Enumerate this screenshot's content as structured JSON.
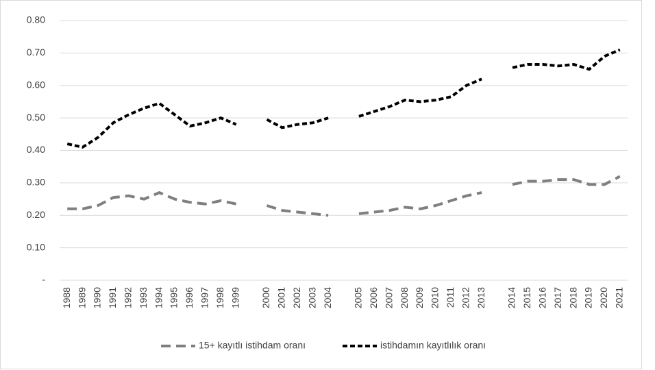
{
  "chart_data": {
    "type": "line",
    "categories": [
      "1988",
      "1989",
      "1990",
      "1991",
      "1992",
      "1993",
      "1994",
      "1995",
      "1996",
      "1997",
      "1998",
      "1999",
      null,
      "2000",
      "2001",
      "2002",
      "2003",
      "2004",
      null,
      "2005",
      "2006",
      "2007",
      "2008",
      "2009",
      "2010",
      "2011",
      "2012",
      "2013",
      null,
      "2014",
      "2015",
      "2016",
      "2017",
      "2018",
      "2019",
      "2020",
      "2021"
    ],
    "series": [
      {
        "name": "15+ kayıtlı istihdam oranı",
        "color": "#7f7f7f",
        "values": [
          0.22,
          0.22,
          0.23,
          0.255,
          0.26,
          0.25,
          0.27,
          0.25,
          0.24,
          0.235,
          0.245,
          0.235,
          null,
          0.23,
          0.215,
          0.21,
          0.205,
          0.2,
          null,
          0.205,
          0.21,
          0.215,
          0.225,
          0.22,
          0.23,
          0.245,
          0.26,
          0.27,
          null,
          0.295,
          0.305,
          0.305,
          0.31,
          0.31,
          0.295,
          0.295,
          0.32
        ]
      },
      {
        "name": "istihdamın kayıtlılık oranı",
        "color": "#000000",
        "values": [
          0.42,
          0.41,
          0.44,
          0.485,
          0.51,
          0.53,
          0.545,
          0.51,
          0.475,
          0.485,
          0.5,
          0.48,
          null,
          0.495,
          0.47,
          0.48,
          0.485,
          0.5,
          null,
          0.505,
          0.52,
          0.535,
          0.555,
          0.55,
          0.555,
          0.565,
          0.6,
          0.62,
          null,
          0.655,
          0.665,
          0.665,
          0.66,
          0.665,
          0.65,
          0.69,
          0.71
        ]
      }
    ],
    "ylim": [
      0,
      0.8
    ],
    "yticks": [
      {
        "value": 0,
        "label": "-"
      },
      {
        "value": 0.1,
        "label": "0.10"
      },
      {
        "value": 0.2,
        "label": "0.20"
      },
      {
        "value": 0.3,
        "label": "0.30"
      },
      {
        "value": 0.4,
        "label": "0.40"
      },
      {
        "value": 0.5,
        "label": "0.50"
      },
      {
        "value": 0.6,
        "label": "0.60"
      },
      {
        "value": 0.7,
        "label": "0.70"
      },
      {
        "value": 0.8,
        "label": "0.80"
      }
    ],
    "grid": true,
    "legend": "bottom"
  }
}
